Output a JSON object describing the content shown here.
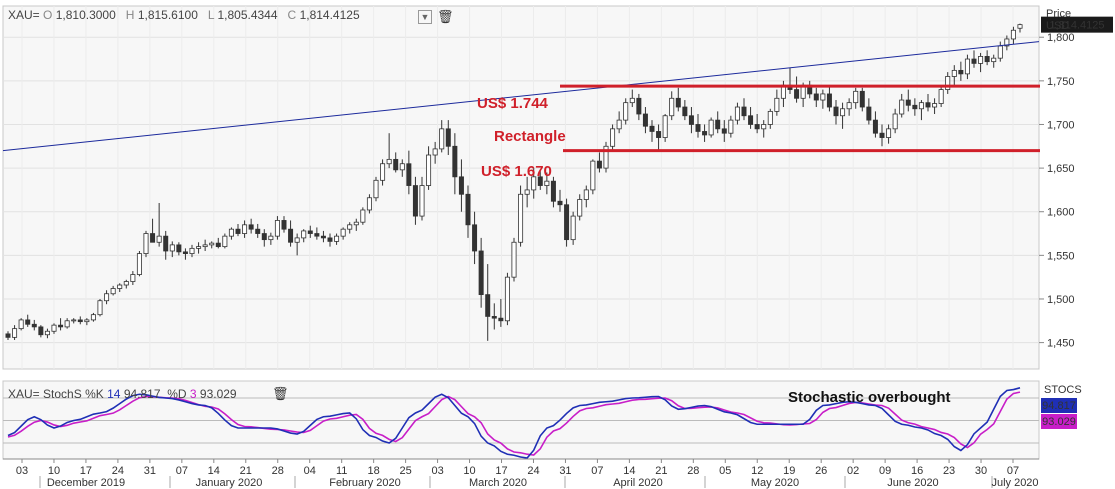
{
  "header": {
    "symbol": "XAU=",
    "open_label": "O",
    "open": "1,810.3000",
    "high_label": "H",
    "high": "1,815.6100",
    "low_label": "L",
    "low": "1,805.4344",
    "close_label": "C",
    "close": "1,814.4125"
  },
  "price_axis": {
    "title_line1": "Price",
    "title_line2": "USD",
    "last_tag": "1,814.4125",
    "last_tag_color": "#1a1a1a"
  },
  "annotations": {
    "upper": "US$ 1.744",
    "middle": "Rectangle",
    "lower": "US$ 1.670",
    "stoch_note": "Stochastic overbought",
    "line_color": "#d0202a",
    "trend_color": "#1c2a9c"
  },
  "stoch_header": {
    "symbol": "XAU=",
    "name": "StochS",
    "k_label": "%K",
    "k_period": "14",
    "k_value": "94.817",
    "d_label": "%D",
    "d_period": "3",
    "d_value": "93.029"
  },
  "stoch_axis": {
    "title": "STOCS",
    "k_tag": "94.817",
    "d_tag": "93.029",
    "k_color": "#1f2fb5",
    "d_color": "#c81ec8"
  },
  "chart_data": {
    "type": "candlestick",
    "ylabel": "Price USD",
    "ylim": [
      1440,
      1835
    ],
    "yticks": [
      "1,450",
      "1,500",
      "1,550",
      "1,600",
      "1,650",
      "1,700",
      "1,750",
      "1,800"
    ],
    "horizontal_lines": [
      1744,
      1670
    ],
    "trendline": [
      [
        0,
        1670
      ],
      [
        157,
        1795
      ]
    ],
    "x_day_labels": [
      "03",
      "10",
      "17",
      "24",
      "31",
      "07",
      "14",
      "21",
      "28",
      "04",
      "11",
      "18",
      "25",
      "03",
      "10",
      "17",
      "24",
      "31",
      "07",
      "14",
      "21",
      "28",
      "05",
      "12",
      "19",
      "26",
      "02",
      "09",
      "16",
      "23",
      "30",
      "07"
    ],
    "x_month_labels": [
      "December 2019",
      "January 2020",
      "February 2020",
      "March 2020",
      "April 2020",
      "May 2020",
      "June 2020",
      "July 2020"
    ],
    "ohlc": [
      [
        1460,
        1463,
        1453,
        1456
      ],
      [
        1456,
        1470,
        1453,
        1466
      ],
      [
        1466,
        1478,
        1464,
        1476
      ],
      [
        1476,
        1482,
        1468,
        1471
      ],
      [
        1471,
        1476,
        1464,
        1468
      ],
      [
        1468,
        1470,
        1456,
        1459
      ],
      [
        1459,
        1466,
        1455,
        1463
      ],
      [
        1463,
        1472,
        1460,
        1470
      ],
      [
        1470,
        1478,
        1464,
        1468
      ],
      [
        1468,
        1478,
        1466,
        1475
      ],
      [
        1475,
        1478,
        1472,
        1476
      ],
      [
        1476,
        1480,
        1471,
        1474
      ],
      [
        1474,
        1478,
        1470,
        1476
      ],
      [
        1476,
        1484,
        1474,
        1482
      ],
      [
        1482,
        1500,
        1480,
        1498
      ],
      [
        1498,
        1510,
        1494,
        1506
      ],
      [
        1506,
        1515,
        1504,
        1512
      ],
      [
        1512,
        1518,
        1508,
        1516
      ],
      [
        1516,
        1522,
        1512,
        1520
      ],
      [
        1520,
        1532,
        1516,
        1528
      ],
      [
        1528,
        1555,
        1526,
        1552
      ],
      [
        1552,
        1578,
        1548,
        1575
      ],
      [
        1575,
        1592,
        1568,
        1565
      ],
      [
        1565,
        1610,
        1560,
        1572
      ],
      [
        1572,
        1578,
        1545,
        1555
      ],
      [
        1555,
        1566,
        1548,
        1562
      ],
      [
        1562,
        1565,
        1550,
        1554
      ],
      [
        1554,
        1558,
        1545,
        1552
      ],
      [
        1552,
        1562,
        1548,
        1558
      ],
      [
        1558,
        1565,
        1552,
        1560
      ],
      [
        1560,
        1568,
        1555,
        1562
      ],
      [
        1562,
        1566,
        1558,
        1564
      ],
      [
        1564,
        1570,
        1558,
        1560
      ],
      [
        1560,
        1575,
        1558,
        1572
      ],
      [
        1572,
        1582,
        1568,
        1580
      ],
      [
        1580,
        1586,
        1572,
        1575
      ],
      [
        1575,
        1590,
        1570,
        1585
      ],
      [
        1585,
        1592,
        1575,
        1580
      ],
      [
        1580,
        1586,
        1570,
        1575
      ],
      [
        1575,
        1580,
        1560,
        1568
      ],
      [
        1568,
        1576,
        1562,
        1572
      ],
      [
        1572,
        1595,
        1568,
        1590
      ],
      [
        1590,
        1595,
        1576,
        1580
      ],
      [
        1580,
        1590,
        1560,
        1565
      ],
      [
        1565,
        1575,
        1550,
        1570
      ],
      [
        1570,
        1580,
        1565,
        1578
      ],
      [
        1578,
        1584,
        1570,
        1575
      ],
      [
        1575,
        1582,
        1568,
        1572
      ],
      [
        1572,
        1578,
        1565,
        1570
      ],
      [
        1570,
        1575,
        1560,
        1566
      ],
      [
        1566,
        1575,
        1562,
        1572
      ],
      [
        1572,
        1582,
        1568,
        1580
      ],
      [
        1580,
        1588,
        1575,
        1585
      ],
      [
        1585,
        1592,
        1578,
        1588
      ],
      [
        1588,
        1605,
        1585,
        1602
      ],
      [
        1602,
        1620,
        1598,
        1616
      ],
      [
        1616,
        1640,
        1612,
        1636
      ],
      [
        1636,
        1660,
        1630,
        1655
      ],
      [
        1655,
        1690,
        1650,
        1660
      ],
      [
        1660,
        1668,
        1645,
        1648
      ],
      [
        1648,
        1660,
        1640,
        1655
      ],
      [
        1655,
        1670,
        1620,
        1630
      ],
      [
        1630,
        1640,
        1585,
        1595
      ],
      [
        1595,
        1640,
        1590,
        1630
      ],
      [
        1630,
        1675,
        1625,
        1665
      ],
      [
        1665,
        1680,
        1655,
        1672
      ],
      [
        1672,
        1705,
        1668,
        1695
      ],
      [
        1695,
        1705,
        1665,
        1675
      ],
      [
        1675,
        1690,
        1620,
        1640
      ],
      [
        1640,
        1660,
        1600,
        1620
      ],
      [
        1620,
        1630,
        1570,
        1585
      ],
      [
        1585,
        1600,
        1540,
        1555
      ],
      [
        1555,
        1570,
        1490,
        1505
      ],
      [
        1505,
        1540,
        1452,
        1480
      ],
      [
        1480,
        1495,
        1465,
        1478
      ],
      [
        1478,
        1500,
        1468,
        1475
      ],
      [
        1475,
        1530,
        1470,
        1525
      ],
      [
        1525,
        1570,
        1520,
        1565
      ],
      [
        1565,
        1630,
        1560,
        1620
      ],
      [
        1620,
        1640,
        1605,
        1625
      ],
      [
        1625,
        1650,
        1615,
        1640
      ],
      [
        1640,
        1648,
        1625,
        1630
      ],
      [
        1630,
        1645,
        1620,
        1635
      ],
      [
        1635,
        1640,
        1605,
        1612
      ],
      [
        1612,
        1625,
        1600,
        1608
      ],
      [
        1608,
        1615,
        1560,
        1568
      ],
      [
        1568,
        1600,
        1562,
        1595
      ],
      [
        1595,
        1620,
        1590,
        1614
      ],
      [
        1614,
        1630,
        1605,
        1625
      ],
      [
        1625,
        1660,
        1620,
        1658
      ],
      [
        1658,
        1668,
        1645,
        1650
      ],
      [
        1650,
        1680,
        1645,
        1675
      ],
      [
        1675,
        1700,
        1670,
        1695
      ],
      [
        1695,
        1715,
        1690,
        1705
      ],
      [
        1705,
        1730,
        1700,
        1725
      ],
      [
        1725,
        1740,
        1720,
        1730
      ],
      [
        1730,
        1735,
        1705,
        1712
      ],
      [
        1712,
        1720,
        1690,
        1698
      ],
      [
        1698,
        1705,
        1680,
        1692
      ],
      [
        1692,
        1700,
        1670,
        1685
      ],
      [
        1685,
        1712,
        1680,
        1710
      ],
      [
        1710,
        1738,
        1705,
        1730
      ],
      [
        1730,
        1742,
        1715,
        1720
      ],
      [
        1720,
        1728,
        1705,
        1710
      ],
      [
        1710,
        1720,
        1690,
        1700
      ],
      [
        1700,
        1712,
        1685,
        1692
      ],
      [
        1692,
        1700,
        1680,
        1688
      ],
      [
        1688,
        1708,
        1685,
        1705
      ],
      [
        1705,
        1715,
        1690,
        1695
      ],
      [
        1695,
        1705,
        1680,
        1690
      ],
      [
        1690,
        1710,
        1685,
        1705
      ],
      [
        1705,
        1725,
        1700,
        1720
      ],
      [
        1720,
        1730,
        1705,
        1710
      ],
      [
        1710,
        1720,
        1695,
        1700
      ],
      [
        1700,
        1712,
        1690,
        1695
      ],
      [
        1695,
        1705,
        1685,
        1700
      ],
      [
        1700,
        1718,
        1695,
        1715
      ],
      [
        1715,
        1740,
        1710,
        1730
      ],
      [
        1730,
        1750,
        1720,
        1745
      ],
      [
        1745,
        1765,
        1735,
        1740
      ],
      [
        1740,
        1755,
        1725,
        1730
      ],
      [
        1730,
        1748,
        1720,
        1745
      ],
      [
        1745,
        1750,
        1730,
        1735
      ],
      [
        1735,
        1742,
        1720,
        1728
      ],
      [
        1728,
        1740,
        1718,
        1735
      ],
      [
        1735,
        1745,
        1715,
        1720
      ],
      [
        1720,
        1728,
        1700,
        1710
      ],
      [
        1710,
        1725,
        1695,
        1718
      ],
      [
        1718,
        1730,
        1710,
        1725
      ],
      [
        1725,
        1742,
        1718,
        1738
      ],
      [
        1738,
        1742,
        1715,
        1720
      ],
      [
        1720,
        1730,
        1700,
        1705
      ],
      [
        1705,
        1715,
        1685,
        1690
      ],
      [
        1690,
        1700,
        1675,
        1685
      ],
      [
        1685,
        1700,
        1678,
        1695
      ],
      [
        1695,
        1718,
        1690,
        1712
      ],
      [
        1712,
        1735,
        1708,
        1728
      ],
      [
        1728,
        1740,
        1715,
        1722
      ],
      [
        1722,
        1730,
        1710,
        1718
      ],
      [
        1718,
        1728,
        1705,
        1725
      ],
      [
        1725,
        1735,
        1715,
        1720
      ],
      [
        1720,
        1730,
        1712,
        1724
      ],
      [
        1724,
        1745,
        1720,
        1740
      ],
      [
        1740,
        1760,
        1735,
        1755
      ],
      [
        1755,
        1768,
        1745,
        1762
      ],
      [
        1762,
        1772,
        1750,
        1758
      ],
      [
        1758,
        1780,
        1752,
        1775
      ],
      [
        1775,
        1785,
        1765,
        1770
      ],
      [
        1770,
        1782,
        1760,
        1778
      ],
      [
        1778,
        1785,
        1768,
        1772
      ],
      [
        1772,
        1780,
        1765,
        1776
      ],
      [
        1776,
        1795,
        1772,
        1790
      ],
      [
        1790,
        1802,
        1785,
        1798
      ],
      [
        1798,
        1812,
        1792,
        1808
      ],
      [
        1810.3,
        1815.61,
        1805.43,
        1814.41
      ]
    ],
    "stochastic": {
      "k_period": 14,
      "d_period": 3,
      "ylim": [
        0,
        100
      ],
      "reference_levels": [
        20,
        50,
        80
      ],
      "k_anchors": [
        [
          0,
          30
        ],
        [
          4,
          55
        ],
        [
          7,
          40
        ],
        [
          10,
          50
        ],
        [
          14,
          60
        ],
        [
          20,
          85
        ],
        [
          24,
          80
        ],
        [
          30,
          70
        ],
        [
          35,
          40
        ],
        [
          40,
          40
        ],
        [
          44,
          32
        ],
        [
          48,
          55
        ],
        [
          52,
          60
        ],
        [
          55,
          30
        ],
        [
          58,
          20
        ],
        [
          62,
          60
        ],
        [
          66,
          85
        ],
        [
          70,
          55
        ],
        [
          73,
          20
        ],
        [
          76,
          5
        ],
        [
          79,
          0
        ],
        [
          82,
          40
        ],
        [
          87,
          70
        ],
        [
          91,
          75
        ],
        [
          95,
          80
        ],
        [
          99,
          82
        ],
        [
          102,
          65
        ],
        [
          106,
          70
        ],
        [
          110,
          60
        ],
        [
          114,
          45
        ],
        [
          118,
          45
        ],
        [
          121,
          45
        ],
        [
          124,
          70
        ],
        [
          128,
          75
        ],
        [
          132,
          70
        ],
        [
          136,
          45
        ],
        [
          139,
          40
        ],
        [
          142,
          30
        ],
        [
          145,
          10
        ],
        [
          148,
          40
        ],
        [
          152,
          90
        ],
        [
          155,
          94.8
        ],
        [
          157,
          94.8
        ]
      ],
      "d_anchors": [
        [
          0,
          28
        ],
        [
          5,
          50
        ],
        [
          8,
          42
        ],
        [
          11,
          48
        ],
        [
          15,
          58
        ],
        [
          21,
          82
        ],
        [
          25,
          80
        ],
        [
          31,
          68
        ],
        [
          36,
          42
        ],
        [
          41,
          38
        ],
        [
          45,
          34
        ],
        [
          49,
          52
        ],
        [
          53,
          58
        ],
        [
          56,
          33
        ],
        [
          59,
          22
        ],
        [
          63,
          55
        ],
        [
          67,
          82
        ],
        [
          71,
          55
        ],
        [
          74,
          24
        ],
        [
          77,
          8
        ],
        [
          80,
          4
        ],
        [
          83,
          36
        ],
        [
          88,
          66
        ],
        [
          92,
          72
        ],
        [
          96,
          78
        ],
        [
          100,
          80
        ],
        [
          103,
          66
        ],
        [
          107,
          68
        ],
        [
          111,
          60
        ],
        [
          115,
          47
        ],
        [
          119,
          44
        ],
        [
          122,
          46
        ],
        [
          125,
          66
        ],
        [
          129,
          74
        ],
        [
          133,
          70
        ],
        [
          137,
          47
        ],
        [
          140,
          40
        ],
        [
          143,
          32
        ],
        [
          146,
          14
        ],
        [
          149,
          38
        ],
        [
          153,
          86
        ],
        [
          156,
          93.0
        ],
        [
          157,
          93.0
        ]
      ]
    }
  }
}
